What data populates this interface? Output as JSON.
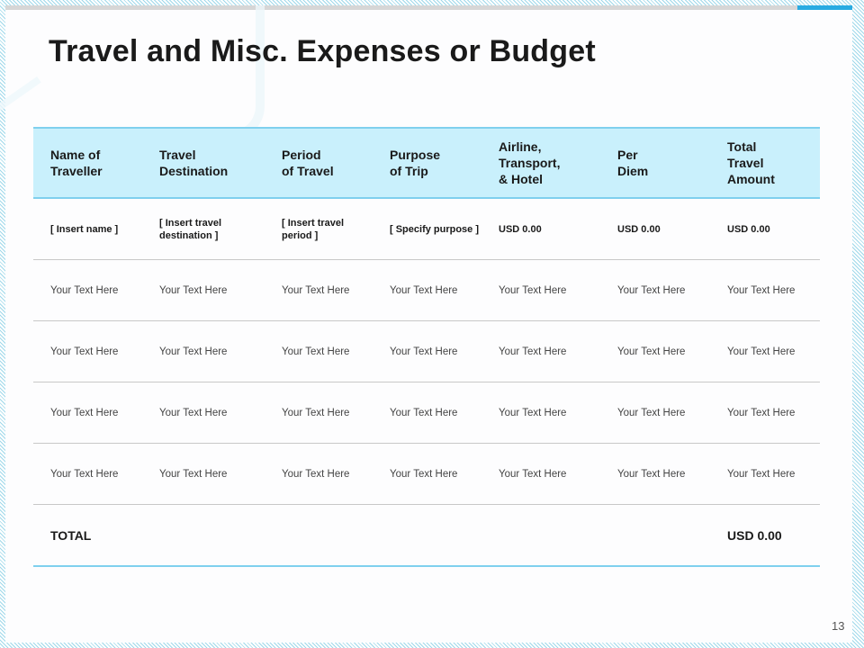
{
  "slide": {
    "title": "Travel and Misc. Expenses or Budget",
    "page_number": "13"
  },
  "table": {
    "headers": [
      "Name of\nTraveller",
      "Travel\nDestination",
      "Period\nof Travel",
      "Purpose\nof Trip",
      "Airline,\nTransport,\n& Hotel",
      "Per\nDiem",
      "Total\nTravel\nAmount"
    ],
    "first_row": [
      "[ Insert name ]",
      "[ Insert travel destination ]",
      "[ Insert travel period ]",
      "[ Specify purpose ]",
      "USD 0.00",
      "USD 0.00",
      "USD 0.00"
    ],
    "placeholder_rows": [
      [
        "Your Text Here",
        "Your Text Here",
        "Your Text Here",
        "Your Text Here",
        "Your Text Here",
        "Your Text Here",
        "Your Text Here"
      ],
      [
        "Your Text Here",
        "Your Text Here",
        "Your Text Here",
        "Your Text Here",
        "Your Text Here",
        "Your Text Here",
        "Your Text Here"
      ],
      [
        "Your Text Here",
        "Your Text Here",
        "Your Text Here",
        "Your Text Here",
        "Your Text Here",
        "Your Text Here",
        "Your Text Here"
      ],
      [
        "Your Text Here",
        "Your Text Here",
        "Your Text Here",
        "Your Text Here",
        "Your Text Here",
        "Your Text Here",
        "Your Text Here"
      ]
    ],
    "total_row": {
      "label": "TOTAL",
      "amount": "USD 0.00"
    }
  },
  "colors": {
    "header_fill": "#c9f0fc",
    "accent_line": "#7fd0ee",
    "accent_blue": "#29abe2"
  }
}
